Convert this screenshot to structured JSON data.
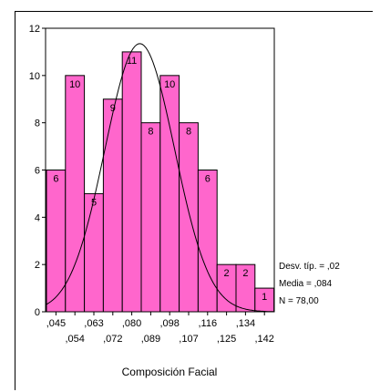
{
  "chart_data": {
    "type": "bar",
    "title": "",
    "xlabel": "Composición Facial",
    "ylabel": "",
    "ylim": [
      0,
      12
    ],
    "yticks": [
      "0",
      "2",
      "4",
      "6",
      "8",
      "10",
      "12"
    ],
    "categories": [
      ",045",
      ",054",
      ",063",
      ",072",
      ",080",
      ",089",
      ",098",
      ",107",
      ",116",
      ",125",
      ",134",
      ",142"
    ],
    "x_tick_labels_row1": [
      ",045",
      ",063",
      ",080",
      ",098",
      ",116",
      ",134"
    ],
    "x_tick_labels_row2": [
      ",054",
      ",072",
      ",089",
      ",107",
      ",125",
      ",142"
    ],
    "values": [
      6,
      10,
      5,
      9,
      11,
      8,
      10,
      8,
      6,
      2,
      2,
      1
    ],
    "value_labels": [
      "6",
      "10",
      "5",
      "9",
      "11",
      "8",
      "10",
      "8",
      "6",
      "2",
      "2",
      "1"
    ],
    "normal_curve": {
      "mean": 0.084,
      "sd": 0.02,
      "n": 78
    },
    "stats": [
      "Desv. típ. = ,02",
      "Media = ,084",
      "N = 78,00"
    ],
    "grid": false,
    "bar_color": "#ff66cc"
  }
}
